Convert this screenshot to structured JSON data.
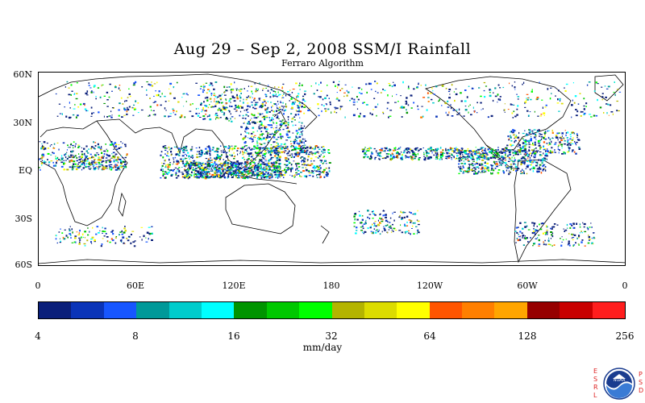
{
  "title": "Aug 29 – Sep 2, 2008 SSM/I Rainfall",
  "subtitle": "Ferraro Algorithm",
  "lat_labels": [
    "60N",
    "30N",
    "EQ",
    "30S",
    "60S"
  ],
  "lon_labels": [
    "0",
    "60E",
    "120E",
    "180",
    "120W",
    "60W",
    "0"
  ],
  "colorbar": {
    "colors": [
      "#0a1f7a",
      "#0a34b8",
      "#1756ff",
      "#009999",
      "#00cccc",
      "#00ffff",
      "#009400",
      "#00c800",
      "#00ff00",
      "#b4b400",
      "#dcdc00",
      "#ffff00",
      "#ff5500",
      "#ff7f00",
      "#ffa500",
      "#960000",
      "#c80000",
      "#ff1e1e"
    ],
    "tick_labels": [
      "4",
      "8",
      "16",
      "32",
      "64",
      "128",
      "256"
    ],
    "units": "mm/day"
  },
  "logo": {
    "left_letters": [
      "E",
      "S",
      "R",
      "L"
    ],
    "right_letters": [
      "P",
      "S",
      "D"
    ],
    "badge": "NOAA"
  }
}
